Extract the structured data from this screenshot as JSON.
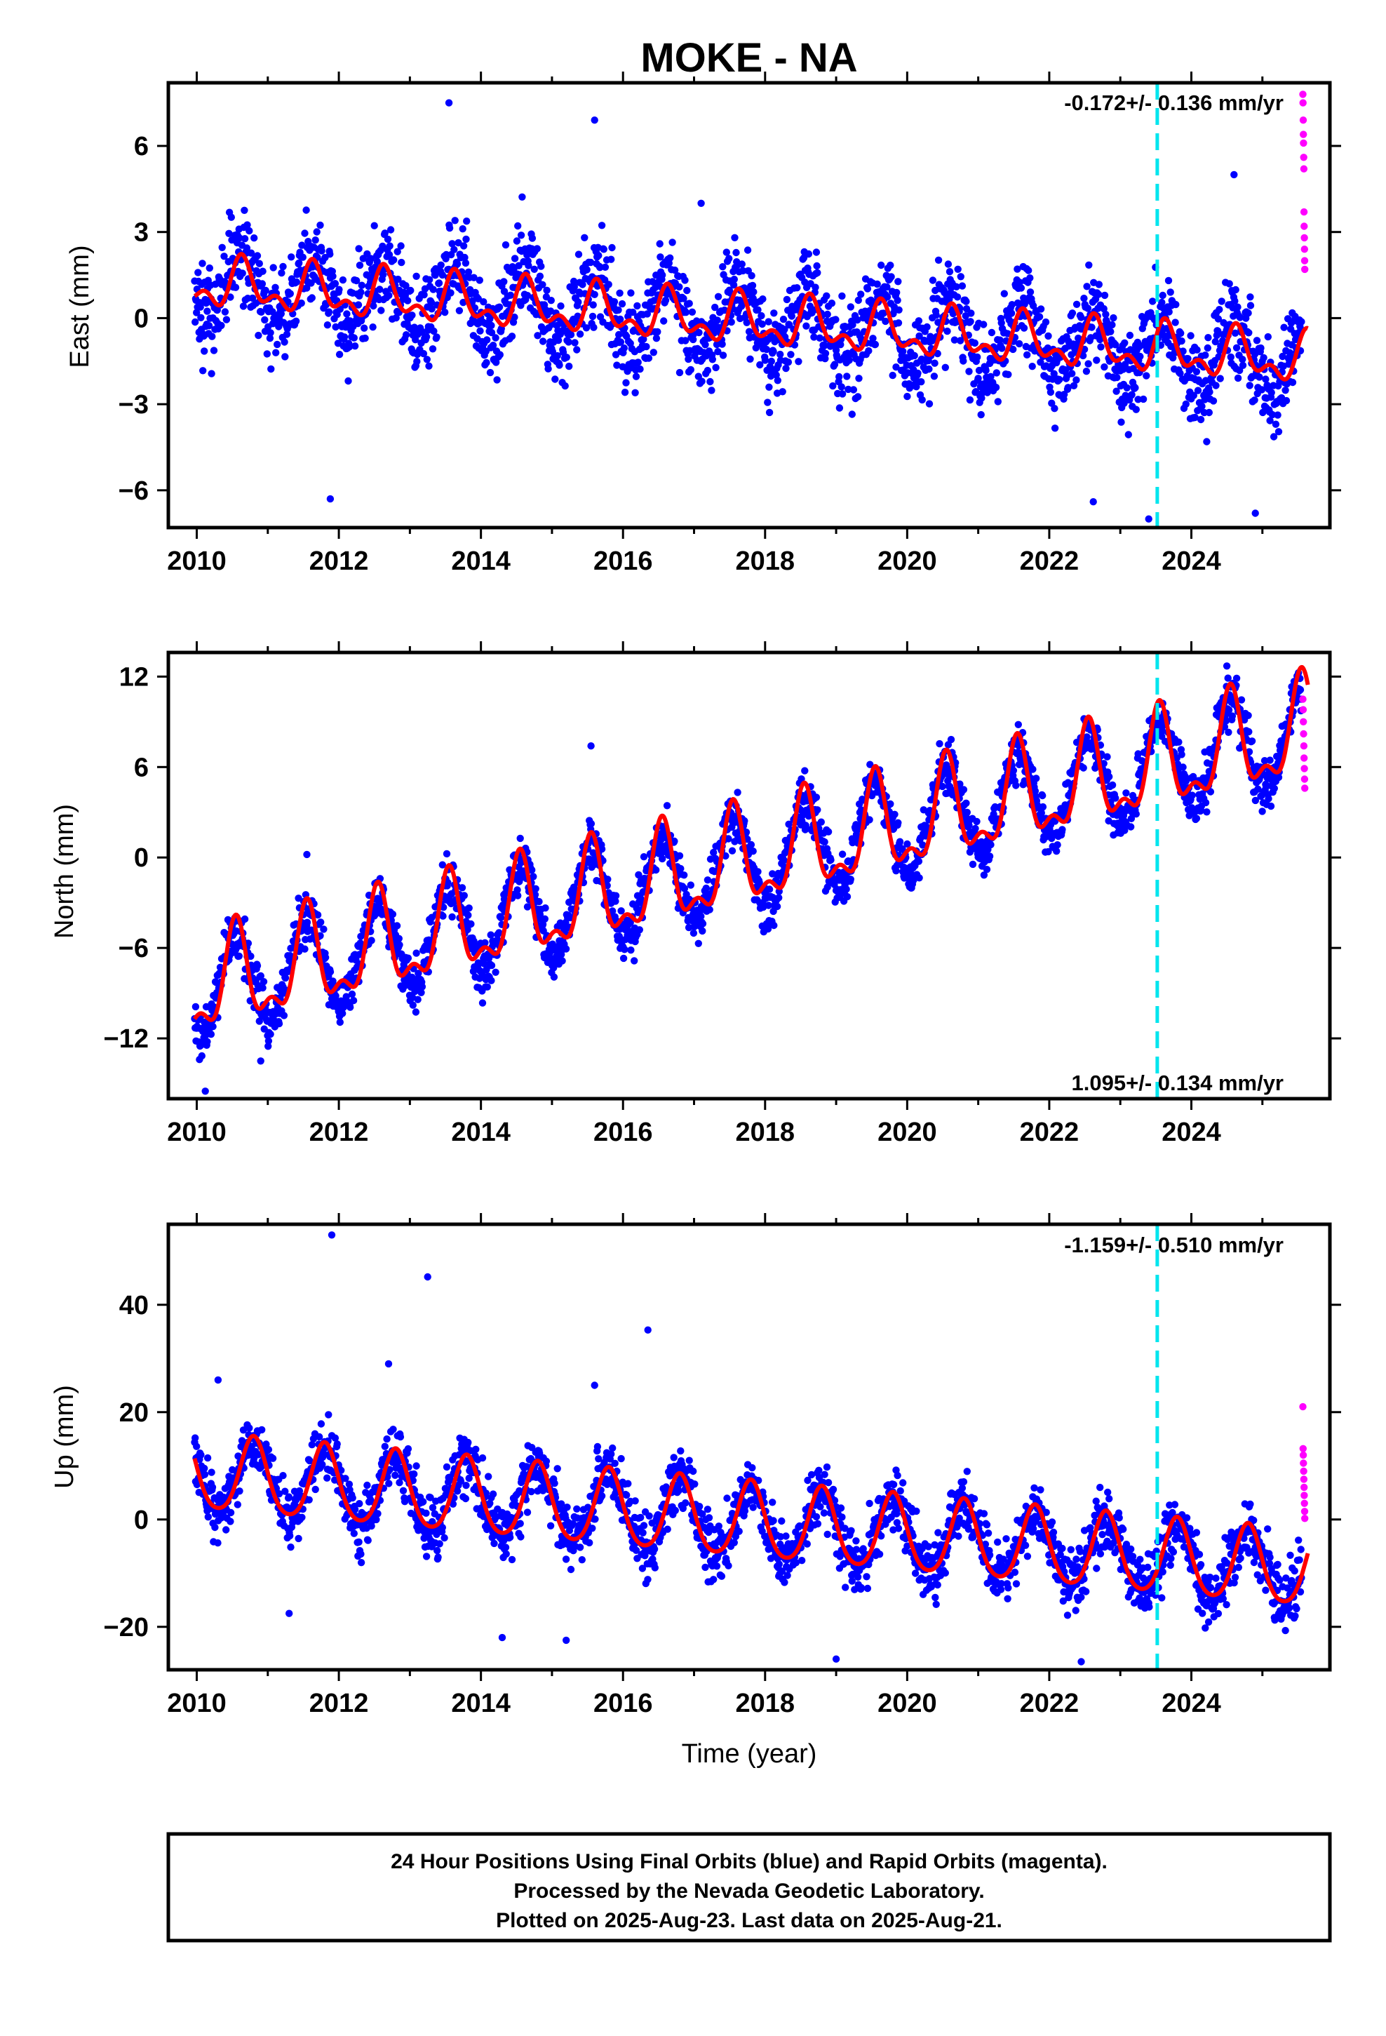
{
  "title": "MOKE - NA",
  "colors": {
    "final_orbits": "#0000ff",
    "rapid_orbits": "#ff00ff",
    "model_fit": "#ff0000",
    "event_line": "#00e5ee",
    "axes": "#000000"
  },
  "event_year": 2023.52,
  "chart_data": [
    {
      "type": "scatter",
      "component": "east",
      "ylabel": "East (mm)",
      "xlabel": "",
      "xlim": [
        2009.6,
        2025.95
      ],
      "ylim": [
        -7.3,
        8.2
      ],
      "xticks": [
        2010,
        2012,
        2014,
        2016,
        2018,
        2020,
        2022,
        2024
      ],
      "yticks": [
        -6,
        -3,
        0,
        3,
        6
      ],
      "rate_label": "-0.172+/- 0.136 mm/yr",
      "rate_position": "top-right",
      "model": {
        "offset": 1.2,
        "trend": -0.172,
        "ann_amp": 0.7,
        "ann_peak": 0.65,
        "semi_amp": 0.45,
        "semi_peak": 0.62
      },
      "scatter": {
        "noise": 1.15,
        "seasonal_amp": 1.4,
        "seasonal_peak": 0.62
      },
      "series": [
        {
          "name": "Final Orbits (blue)",
          "x_start": 2009.97,
          "x_end": 2025.55,
          "color": "#0000ff"
        },
        {
          "name": "Rapid Orbits (magenta)",
          "x_start": 2025.55,
          "x_end": 2025.64,
          "color": "#ff00ff"
        },
        {
          "name": "model",
          "x_start": 2009.97,
          "x_end": 2025.64,
          "color": "#ff0000"
        }
      ],
      "outliers": [
        [
          2013.55,
          7.5
        ],
        [
          2015.6,
          6.9
        ],
        [
          2011.88,
          -6.3
        ],
        [
          2023.4,
          -7.0
        ],
        [
          2024.6,
          5.0
        ],
        [
          2024.9,
          -6.8
        ],
        [
          2022.62,
          -6.4
        ],
        [
          2017.1,
          4.0
        ]
      ],
      "rapid_points": [
        7.8,
        7.5,
        6.9,
        6.4,
        6.1,
        5.6,
        5.2,
        3.7,
        3.2,
        2.8,
        2.4,
        2.0,
        1.7
      ]
    },
    {
      "type": "scatter",
      "component": "north",
      "ylabel": "North (mm)",
      "xlabel": "",
      "xlim": [
        2009.6,
        2025.95
      ],
      "ylim": [
        -16.0,
        13.6
      ],
      "xticks": [
        2010,
        2012,
        2014,
        2016,
        2018,
        2020,
        2022,
        2024
      ],
      "yticks": [
        -12,
        -6,
        0,
        6,
        12
      ],
      "rate_label": "1.095+/- 0.134 mm/yr",
      "rate_position": "bottom-right",
      "model": {
        "offset": -8.8,
        "trend": 1.095,
        "ann_amp": 3.0,
        "ann_peak": 0.55,
        "semi_amp": 1.4,
        "semi_peak": 0.55
      },
      "scatter": {
        "noise": 1.2,
        "seasonal_amp": 3.6,
        "seasonal_peak": 0.55
      },
      "series": [
        {
          "name": "Final Orbits (blue)",
          "x_start": 2009.97,
          "x_end": 2025.55,
          "color": "#0000ff"
        },
        {
          "name": "Rapid Orbits (magenta)",
          "x_start": 2025.55,
          "x_end": 2025.64,
          "color": "#ff00ff"
        },
        {
          "name": "model",
          "x_start": 2009.97,
          "x_end": 2025.64,
          "color": "#ff0000"
        }
      ],
      "outliers": [
        [
          2010.12,
          -15.5
        ],
        [
          2011.55,
          0.2
        ],
        [
          2015.55,
          7.4
        ],
        [
          2024.5,
          12.7
        ],
        [
          2010.9,
          -13.5
        ]
      ],
      "rapid_points": [
        10.5,
        9.8,
        9.0,
        8.2,
        7.4,
        6.6,
        5.9,
        5.2,
        4.6
      ]
    },
    {
      "type": "scatter",
      "component": "up",
      "ylabel": "Up (mm)",
      "xlabel": "Time (year)",
      "xlim": [
        2009.6,
        2025.95
      ],
      "ylim": [
        -28.0,
        55.0
      ],
      "xticks": [
        2010,
        2012,
        2014,
        2016,
        2018,
        2020,
        2022,
        2024
      ],
      "yticks": [
        -20,
        0,
        20,
        40
      ],
      "rate_label": "-1.159+/- 0.510 mm/yr",
      "rate_position": "top-right",
      "model": {
        "offset": 8.5,
        "trend": -1.159,
        "ann_amp": 7.0,
        "ann_peak": 0.8,
        "semi_amp": 1.0,
        "semi_peak": 0.3
      },
      "scatter": {
        "noise": 4.0,
        "seasonal_amp": 7.5,
        "seasonal_peak": 0.8
      },
      "series": [
        {
          "name": "Final Orbits (blue)",
          "x_start": 2009.97,
          "x_end": 2025.55,
          "color": "#0000ff"
        },
        {
          "name": "Rapid Orbits (magenta)",
          "x_start": 2025.55,
          "x_end": 2025.64,
          "color": "#ff00ff"
        },
        {
          "name": "model",
          "x_start": 2009.97,
          "x_end": 2025.64,
          "color": "#ff0000"
        }
      ],
      "outliers": [
        [
          2011.9,
          53.0
        ],
        [
          2013.25,
          45.2
        ],
        [
          2016.35,
          35.3
        ],
        [
          2015.6,
          25.0
        ],
        [
          2010.3,
          26.0
        ],
        [
          2012.7,
          29.0
        ],
        [
          2011.3,
          -17.5
        ],
        [
          2019.0,
          -26.0
        ],
        [
          2022.45,
          -26.5
        ],
        [
          2014.3,
          -22.0
        ],
        [
          2015.2,
          -22.5
        ]
      ],
      "rapid_points": [
        21.0,
        13.2,
        12.0,
        10.5,
        9.0,
        7.5,
        6.0,
        4.5,
        3.0,
        1.5,
        0.2
      ]
    }
  ],
  "footer": {
    "line1": "24 Hour Positions Using Final Orbits (blue) and Rapid Orbits (magenta).",
    "line2": "Processed by the Nevada Geodetic Laboratory.",
    "line3": "Plotted on 2025-Aug-23. Last data on 2025-Aug-21."
  }
}
